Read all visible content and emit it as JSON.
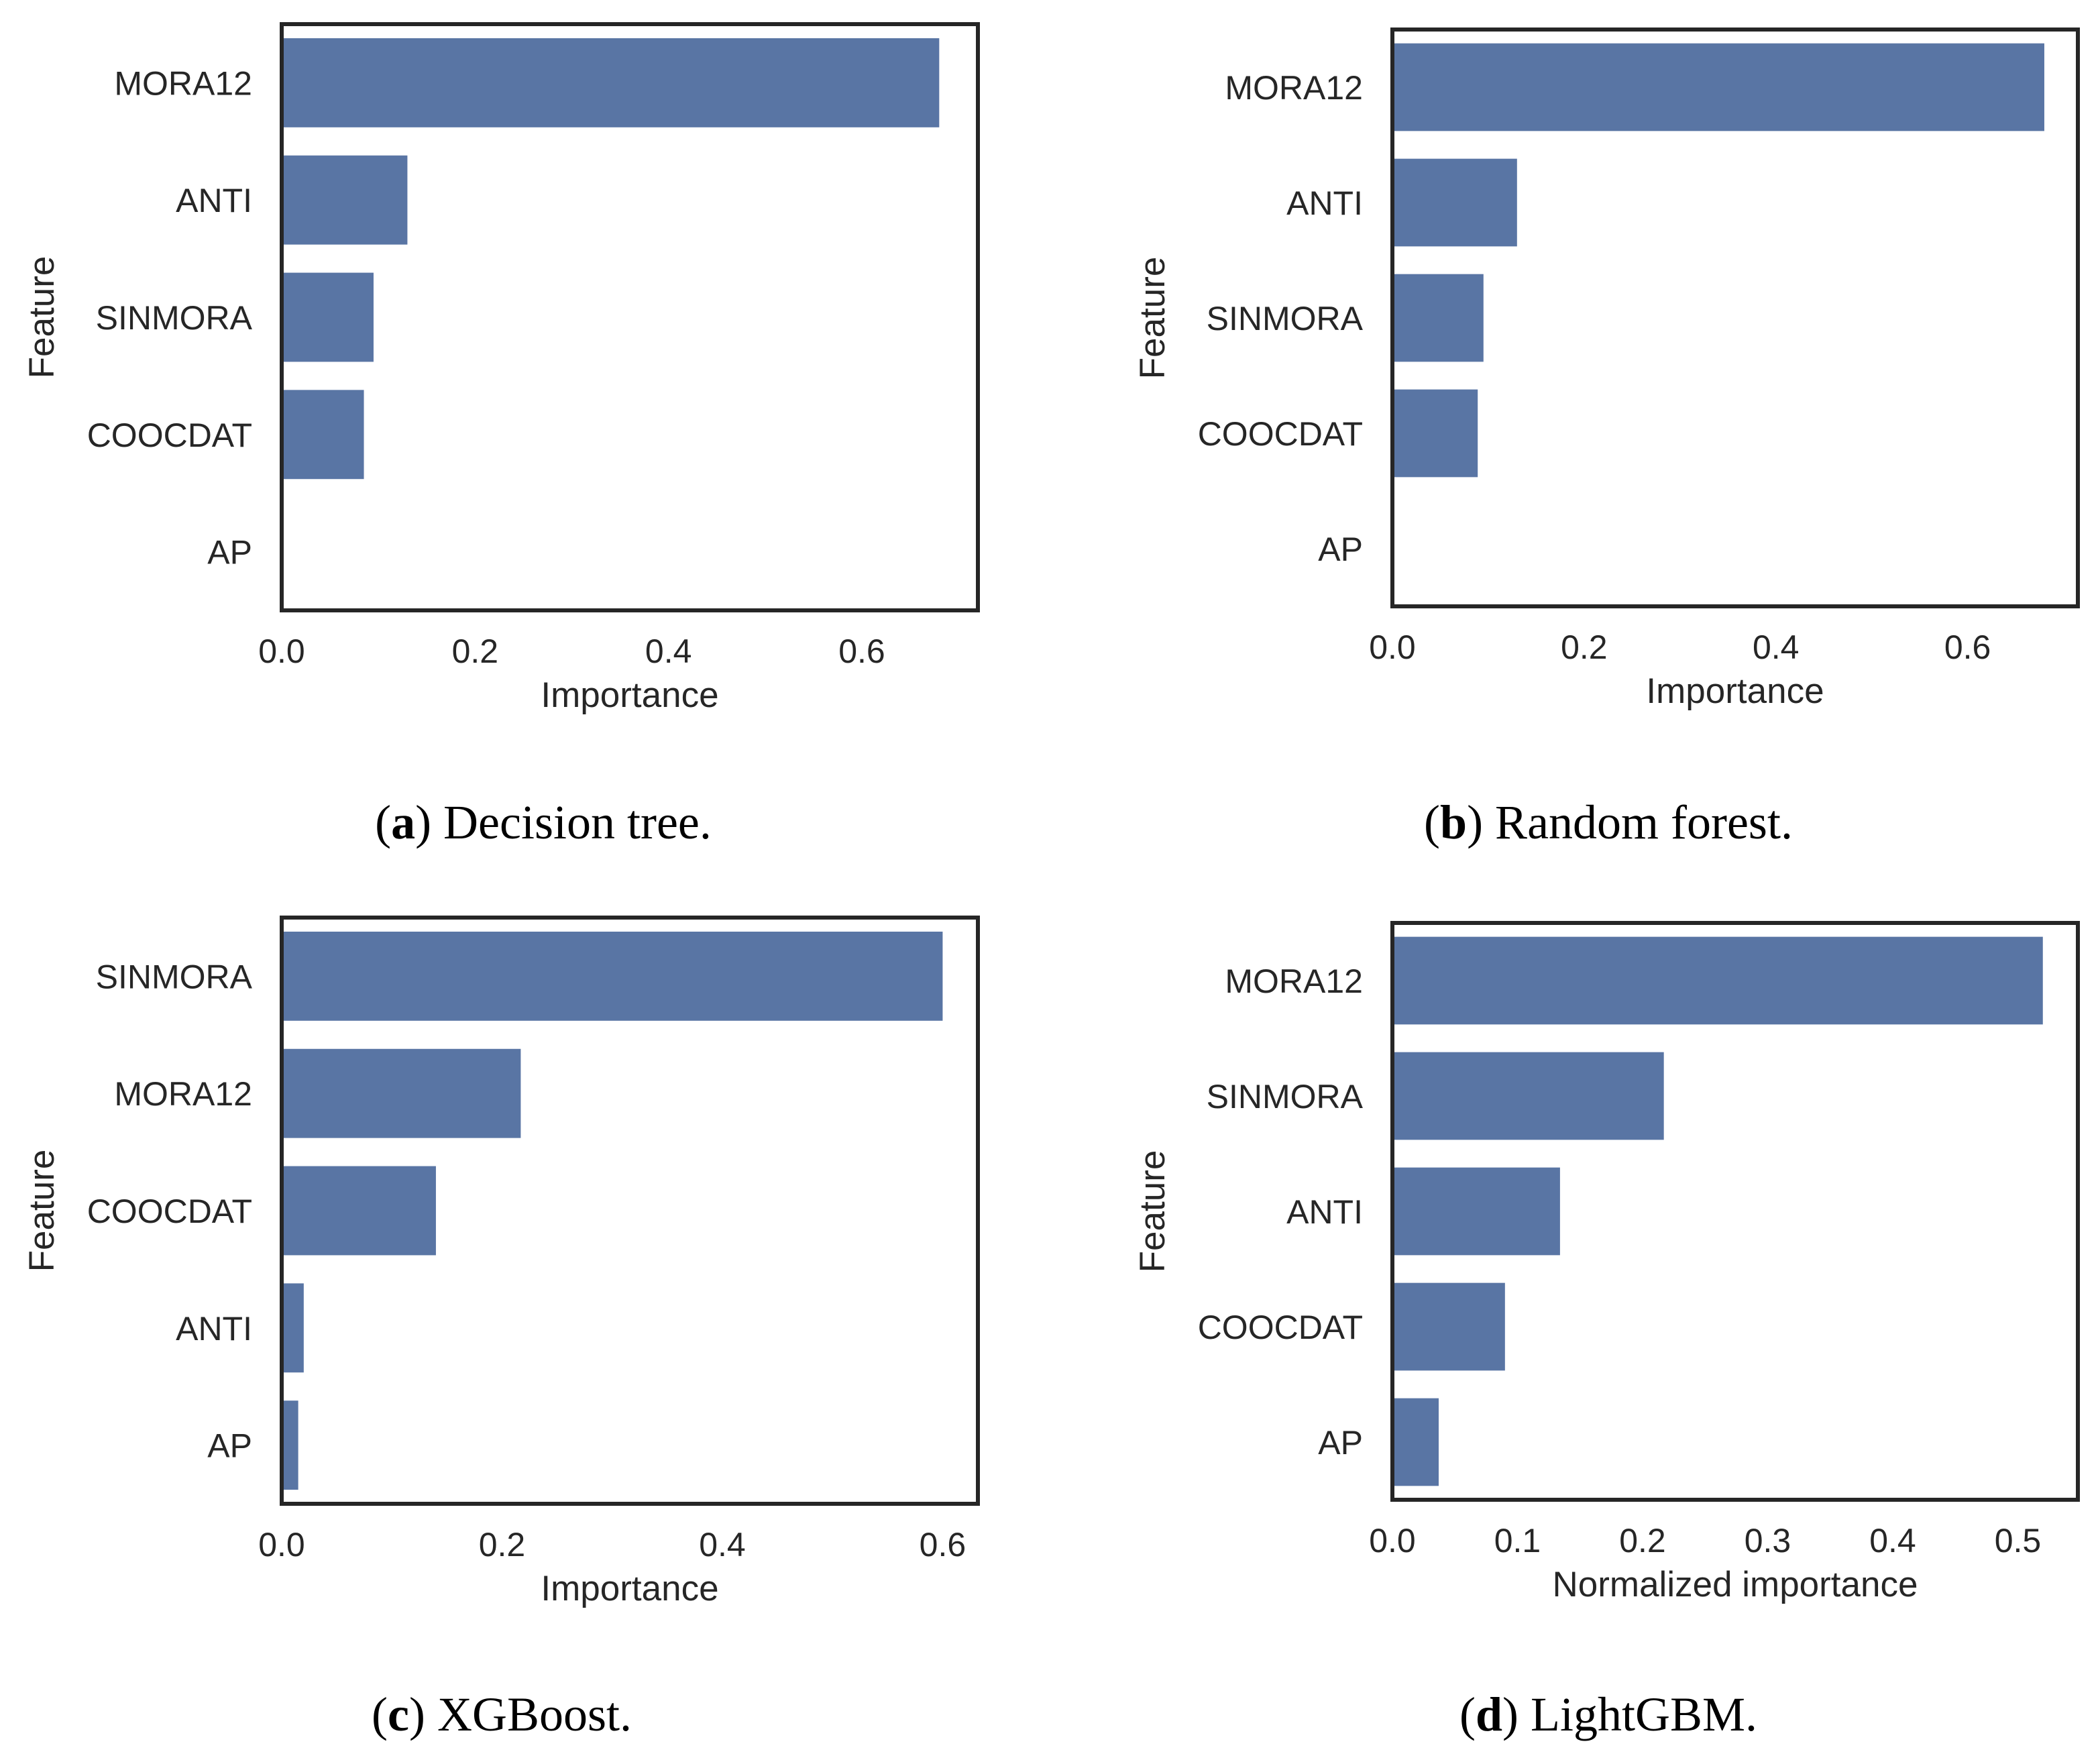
{
  "colors": {
    "bar": "#5975a4",
    "frame": "#262626",
    "text": "#262626",
    "caption": "#000000"
  },
  "chart_data": [
    {
      "type": "bar",
      "orientation": "horizontal",
      "categories": [
        "MORA12",
        "ANTI",
        "SINMORA",
        "COOCDAT",
        "AP"
      ],
      "values": [
        0.68,
        0.13,
        0.095,
        0.085,
        0.0
      ],
      "xlabel": "Importance",
      "ylabel": "Feature",
      "xlim": [
        0,
        0.72
      ],
      "xticks": [
        "0.0",
        "0.2",
        "0.4",
        "0.6"
      ],
      "caption": {
        "open": "(",
        "letter": "a",
        "text": ") Decision tree."
      }
    },
    {
      "type": "bar",
      "orientation": "horizontal",
      "categories": [
        "MORA12",
        "ANTI",
        "SINMORA",
        "COOCDAT",
        "AP"
      ],
      "values": [
        0.68,
        0.13,
        0.095,
        0.089,
        0.0
      ],
      "xlabel": "Importance",
      "ylabel": "Feature",
      "xlim": [
        0,
        0.715
      ],
      "xticks": [
        "0.0",
        "0.2",
        "0.4",
        "0.6"
      ],
      "caption": {
        "open": "(",
        "letter": "b",
        "text": ") Random forest."
      }
    },
    {
      "type": "bar",
      "orientation": "horizontal",
      "categories": [
        "SINMORA",
        "MORA12",
        "COOCDAT",
        "ANTI",
        "AP"
      ],
      "values": [
        0.6,
        0.217,
        0.14,
        0.02,
        0.015
      ],
      "xlabel": "Importance",
      "ylabel": "Feature",
      "xlim": [
        0,
        0.632
      ],
      "xticks": [
        "0.0",
        "0.2",
        "0.4",
        "0.6"
      ],
      "caption": {
        "open": "(",
        "letter": "c",
        "text": ") XGBoost."
      }
    },
    {
      "type": "bar",
      "orientation": "horizontal",
      "categories": [
        "MORA12",
        "SINMORA",
        "ANTI",
        "COOCDAT",
        "AP"
      ],
      "values": [
        0.52,
        0.217,
        0.134,
        0.09,
        0.037
      ],
      "xlabel": "Normalized importance",
      "ylabel": "Feature",
      "xlim": [
        0,
        0.548
      ],
      "xticks": [
        "0.0",
        "0.1",
        "0.2",
        "0.3",
        "0.4",
        "0.5"
      ],
      "caption": {
        "open": "(",
        "letter": "d",
        "text": ") LightGBM."
      }
    }
  ]
}
